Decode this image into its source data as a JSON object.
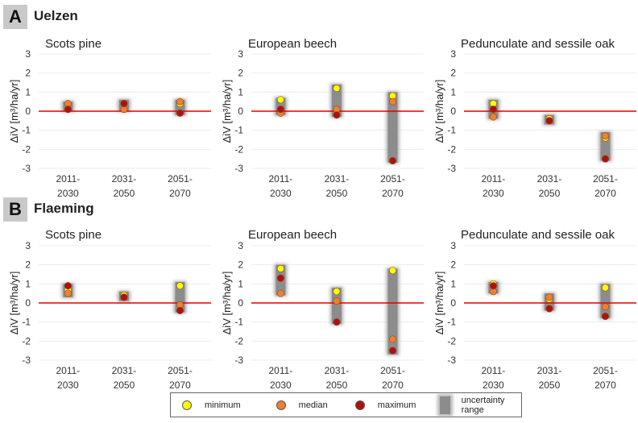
{
  "sections": [
    {
      "letter": "A",
      "name": "Uelzen"
    },
    {
      "letter": "B",
      "name": "Flaeming"
    }
  ],
  "legend": {
    "minimum": {
      "label": "minimum",
      "color": "#ffff00"
    },
    "median": {
      "label": "median",
      "color": "#f08030"
    },
    "maximum": {
      "label": "maximum",
      "color": "#b01010"
    },
    "range": {
      "label": "uncertainty range",
      "color": "#8c8c8c"
    }
  },
  "chart_data": [
    {
      "type": "scatter",
      "section": "A",
      "title": "Scots pine",
      "ylabel": "ΔiV [m³/ha/yr]",
      "ylim": [
        -3,
        3
      ],
      "yticks": [
        "3",
        "2",
        "1",
        "0",
        "-1",
        "-2",
        "-3"
      ],
      "baseline_color": "#e00000",
      "categories": [
        "2011-\n2030",
        "2031-\n2050",
        "2051-\n2070"
      ],
      "series": [
        {
          "name": "minimum",
          "values": [
            0.1,
            0.1,
            0.4
          ]
        },
        {
          "name": "median",
          "values": [
            0.4,
            0.1,
            0.5
          ]
        },
        {
          "name": "maximum",
          "values": [
            0.1,
            0.4,
            -0.1
          ]
        }
      ],
      "range_low": [
        0.0,
        0.0,
        -0.2
      ],
      "range_high": [
        0.5,
        0.6,
        0.6
      ]
    },
    {
      "type": "scatter",
      "section": "A",
      "title": "European beech",
      "ylabel": "ΔiV [m³/ha/yr]",
      "ylim": [
        -3,
        3
      ],
      "yticks": [
        "3",
        "2",
        "1",
        "0",
        "-1",
        "-2",
        "-3"
      ],
      "baseline_color": "#e00000",
      "categories": [
        "2011-\n2030",
        "2031-\n2050",
        "2051-\n2070"
      ],
      "series": [
        {
          "name": "minimum",
          "values": [
            0.6,
            1.2,
            0.8
          ]
        },
        {
          "name": "median",
          "values": [
            -0.1,
            0.1,
            0.5
          ]
        },
        {
          "name": "maximum",
          "values": [
            0.1,
            -0.2,
            -2.6
          ]
        }
      ],
      "range_low": [
        -0.2,
        -0.3,
        -2.7
      ],
      "range_high": [
        0.7,
        1.4,
        1.0
      ]
    },
    {
      "type": "scatter",
      "section": "A",
      "title": "Pedunculate and sessile oak",
      "ylabel": "ΔiV [m³/ha/yr]",
      "ylim": [
        -3,
        3
      ],
      "yticks": [
        "3",
        "2",
        "1",
        "0",
        "-1",
        "-2",
        "-3"
      ],
      "baseline_color": "#e00000",
      "categories": [
        "2011-\n2030",
        "2031-\n2050",
        "2051-\n2070"
      ],
      "series": [
        {
          "name": "minimum",
          "values": [
            0.4,
            -0.4,
            -1.4
          ]
        },
        {
          "name": "median",
          "values": [
            -0.3,
            -0.5,
            -1.3
          ]
        },
        {
          "name": "maximum",
          "values": [
            0.1,
            -0.5,
            -2.5
          ]
        }
      ],
      "range_low": [
        -0.4,
        -0.7,
        -2.6
      ],
      "range_high": [
        0.6,
        -0.2,
        -1.1
      ]
    },
    {
      "type": "scatter",
      "section": "B",
      "title": "Scots pine",
      "ylabel": "ΔiV [m³/ha/yr]",
      "ylim": [
        -3,
        3
      ],
      "yticks": [
        "3",
        "2",
        "1",
        "0",
        "-1",
        "-2",
        "-3"
      ],
      "baseline_color": "#e00000",
      "categories": [
        "2011-\n2030",
        "2031-\n2050",
        "2051-\n2070"
      ],
      "series": [
        {
          "name": "minimum",
          "values": [
            0.7,
            0.4,
            0.9
          ]
        },
        {
          "name": "median",
          "values": [
            0.5,
            0.3,
            -0.1
          ]
        },
        {
          "name": "maximum",
          "values": [
            0.9,
            0.3,
            -0.4
          ]
        }
      ],
      "range_low": [
        0.3,
        0.1,
        -0.5
      ],
      "range_high": [
        1.0,
        0.6,
        1.1
      ]
    },
    {
      "type": "scatter",
      "section": "B",
      "title": "European beech",
      "ylabel": "ΔiV [m³/ha/yr]",
      "ylim": [
        -3,
        3
      ],
      "yticks": [
        "3",
        "2",
        "1",
        "0",
        "-1",
        "-2",
        "-3"
      ],
      "baseline_color": "#e00000",
      "categories": [
        "2011-\n2030",
        "2031-\n2050",
        "2051-\n2070"
      ],
      "series": [
        {
          "name": "minimum",
          "values": [
            1.8,
            0.6,
            1.7
          ]
        },
        {
          "name": "median",
          "values": [
            0.5,
            0.1,
            -1.9
          ]
        },
        {
          "name": "maximum",
          "values": [
            1.3,
            -1.0,
            -2.5
          ]
        }
      ],
      "range_low": [
        0.4,
        -1.1,
        -2.7
      ],
      "range_high": [
        2.0,
        0.8,
        1.8
      ]
    },
    {
      "type": "scatter",
      "section": "B",
      "title": "Pedunculate and sessile oak",
      "ylabel": "ΔiV [m³/ha/yr]",
      "ylim": [
        -3,
        3
      ],
      "yticks": [
        "3",
        "2",
        "1",
        "0",
        "-1",
        "-2",
        "-3"
      ],
      "baseline_color": "#e00000",
      "categories": [
        "2011-\n2030",
        "2031-\n2050",
        "2051-\n2070"
      ],
      "series": [
        {
          "name": "minimum",
          "values": [
            1.0,
            0.2,
            0.8
          ]
        },
        {
          "name": "median",
          "values": [
            0.6,
            0.3,
            -0.2
          ]
        },
        {
          "name": "maximum",
          "values": [
            0.9,
            -0.3,
            -0.7
          ]
        }
      ],
      "range_low": [
        0.5,
        -0.4,
        -0.8
      ],
      "range_high": [
        1.1,
        0.5,
        1.0
      ]
    }
  ]
}
